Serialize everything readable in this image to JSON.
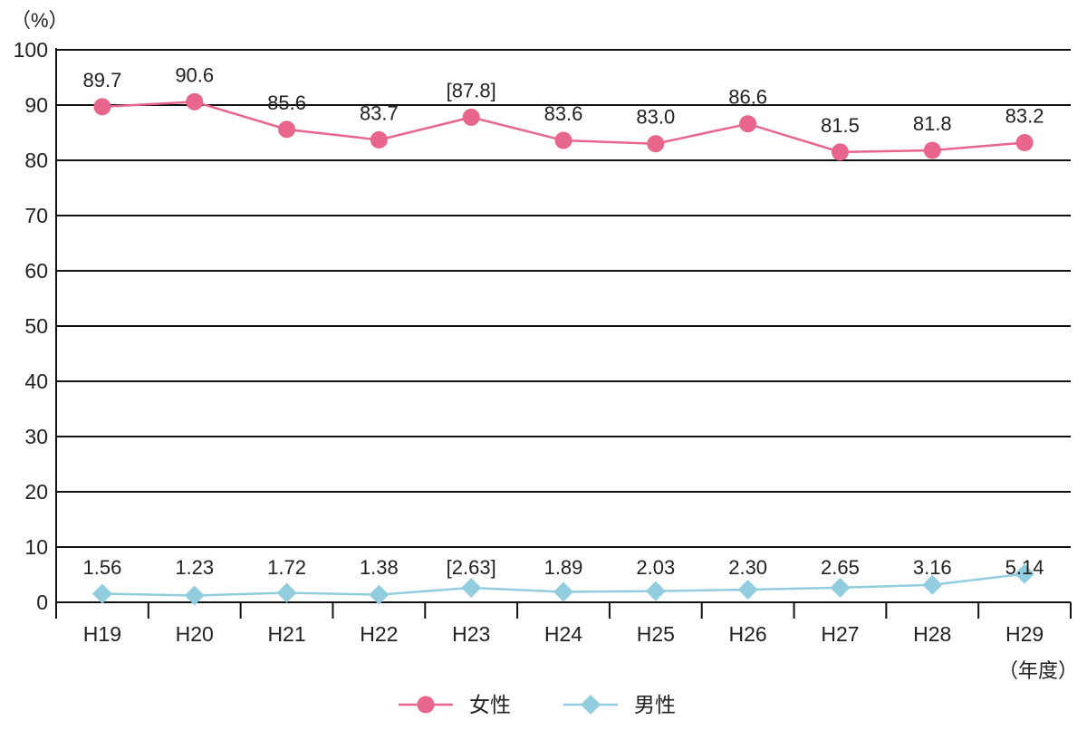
{
  "chart_data": {
    "type": "line",
    "y_unit_label": "（%）",
    "x_unit_label": "（年度）",
    "categories": [
      "H19",
      "H20",
      "H21",
      "H22",
      "H23",
      "H24",
      "H25",
      "H26",
      "H27",
      "H28",
      "H29"
    ],
    "ylim": [
      0,
      100
    ],
    "yticks": [
      "0",
      "10",
      "20",
      "30",
      "40",
      "50",
      "60",
      "70",
      "80",
      "90",
      "100"
    ],
    "grid": true,
    "legend_position": "bottom-center",
    "series": [
      {
        "name": "女性",
        "color": "#E8668B",
        "marker": "circle",
        "values": [
          89.7,
          90.6,
          85.6,
          83.7,
          87.8,
          83.6,
          83.0,
          86.6,
          81.5,
          81.8,
          83.2
        ],
        "labels": [
          "89.7",
          "90.6",
          "85.6",
          "83.7",
          "[87.8]",
          "83.6",
          "83.0",
          "86.6",
          "81.5",
          "81.8",
          "83.2"
        ]
      },
      {
        "name": "男性",
        "color": "#92CDDF",
        "marker": "diamond",
        "values": [
          1.56,
          1.23,
          1.72,
          1.38,
          2.63,
          1.89,
          2.03,
          2.3,
          2.65,
          3.16,
          5.14
        ],
        "labels": [
          "1.56",
          "1.23",
          "1.72",
          "1.38",
          "[2.63]",
          "1.89",
          "2.03",
          "2.30",
          "2.65",
          "3.16",
          "5.14"
        ]
      }
    ]
  }
}
